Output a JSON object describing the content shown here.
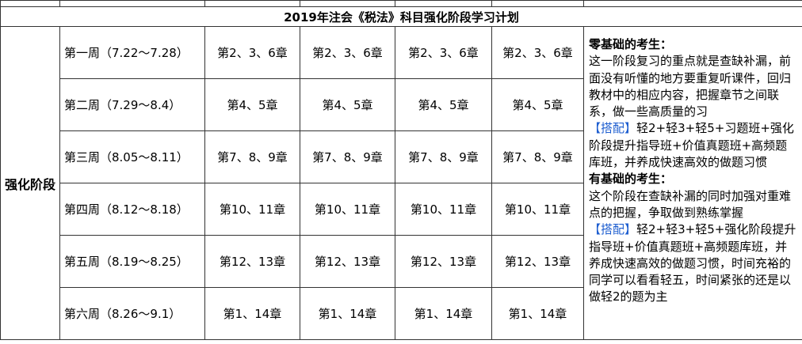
{
  "title": "2019年注会《税法》科目强化阶段学习计划",
  "stage": "强化阶段",
  "rows": [
    {
      "week": "第一周（7.22～7.28）",
      "cells": [
        "第2、3、6章",
        "第2、3、6章",
        "第2、3、6章",
        "第2、3、6章"
      ]
    },
    {
      "week": "第二周（7.29～8.4）",
      "cells": [
        "第4、5章",
        "第4、5章",
        "第4、5章",
        "第4、5章"
      ]
    },
    {
      "week": "第三周（8.05～8.11）",
      "cells": [
        "第7、8、9章",
        "第7、8、9章",
        "第7、8、9章",
        "第7、8、9章"
      ]
    },
    {
      "week": "第四周（8.12～8.18）",
      "cells": [
        "第10、11章",
        "第10、11章",
        "第10、11章",
        "第10、11章"
      ]
    },
    {
      "week": "第五周（8.19～8.25）",
      "cells": [
        "第12、13章",
        "第12、13章",
        "第12、13章",
        "第12、13章"
      ]
    },
    {
      "week": "第六周（8.26～9.1）",
      "cells": [
        "第1、14章",
        "第1、14章",
        "第1、14章",
        "第1、14章"
      ]
    }
  ],
  "notes": {
    "basic_heading": "零基础的考生：",
    "basic_text": "这一阶段复习的重点就是查缺补漏，前面没有听懂的地方要重复听课件，回归教材中的相应内容，把握章节之间联系，做一些高质量的习",
    "basic_tag": "【搭配】",
    "basic_combo": "轻2+轻3+轻5+习题班+强化阶段提升指导班+价值真题班+高频题库班，并养成快速高效的做题习惯",
    "advanced_heading": "有基础的考生：",
    "advanced_text": "这个阶段在查缺补漏的同时加强对重难点的把握，争取做到熟练掌握",
    "advanced_tag": "【搭配】",
    "advanced_combo": "轻2+轻3+轻5+强化阶段提升指导班+价值真题班+高频题库班，并养成快速高效的做题习惯，时间充裕的同学可以看看轻五，时间紧张的还是以做轻2的题为主"
  }
}
